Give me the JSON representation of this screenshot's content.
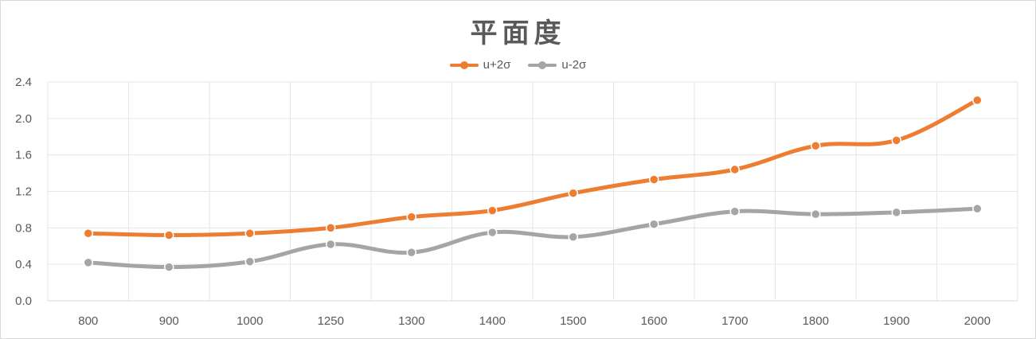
{
  "chart_data": {
    "type": "line",
    "title": "平面度",
    "xlabel": "",
    "ylabel": "",
    "categories": [
      "800",
      "900",
      "1000",
      "1250",
      "1300",
      "1400",
      "1500",
      "1600",
      "1700",
      "1800",
      "1900",
      "2000"
    ],
    "series": [
      {
        "name": "u+2σ",
        "color": "#ed7d31",
        "values": [
          0.74,
          0.72,
          0.74,
          0.8,
          0.92,
          0.99,
          1.18,
          1.33,
          1.44,
          1.7,
          1.76,
          2.2
        ]
      },
      {
        "name": "u-2σ",
        "color": "#a5a5a5",
        "values": [
          0.42,
          0.37,
          0.43,
          0.62,
          0.53,
          0.75,
          0.7,
          0.84,
          0.98,
          0.95,
          0.97,
          1.01
        ]
      }
    ],
    "ylim": [
      0,
      2.4
    ],
    "yticks": [
      "0.0",
      "0.4",
      "0.8",
      "1.2",
      "1.6",
      "2.0",
      "2.4"
    ],
    "grid": true,
    "smooth": true,
    "legend_position": "top"
  }
}
